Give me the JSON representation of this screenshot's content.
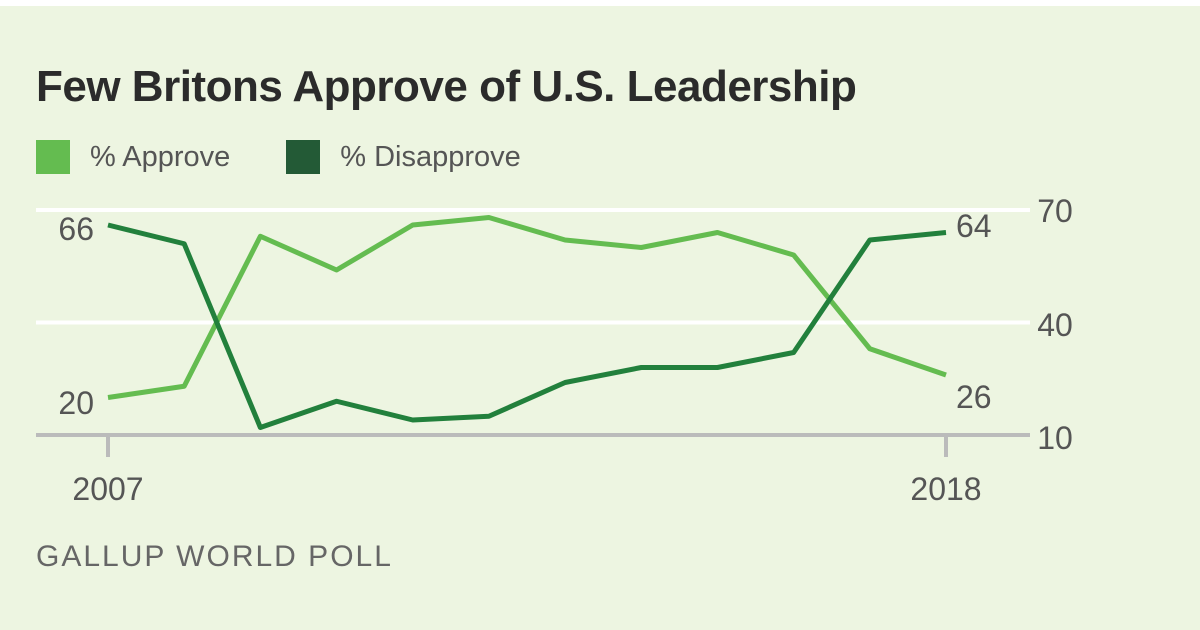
{
  "title": "Few Britons Approve of U.S. Leadership",
  "source": "GALLUP WORLD POLL",
  "colors": {
    "approve": "#64bc50",
    "disapprove": "#22803c",
    "disapprove_legend": "#235a36",
    "background": "#edf5e1"
  },
  "chart_data": {
    "type": "line",
    "title": "Few Britons Approve of U.S. Leadership",
    "x": [
      2007,
      2008,
      2009,
      2010,
      2011,
      2012,
      2013,
      2014,
      2015,
      2016,
      2017,
      2018
    ],
    "x_tick_labels": [
      "2007",
      "2018"
    ],
    "y_ticks": [
      "70",
      "40",
      "10"
    ],
    "ylim": [
      10,
      70
    ],
    "grid": true,
    "legend_placement": "top-left",
    "series": [
      {
        "name": "% Approve",
        "values": [
          20,
          23,
          63,
          54,
          66,
          68,
          62,
          60,
          64,
          58,
          33,
          26
        ]
      },
      {
        "name": "% Disapprove",
        "values": [
          66,
          61,
          12,
          19,
          14,
          15,
          24,
          28,
          28,
          32,
          62,
          64
        ]
      }
    ],
    "annotations": {
      "approve_start": "20",
      "approve_end": "26",
      "disapprove_start": "66",
      "disapprove_end": "64"
    }
  }
}
